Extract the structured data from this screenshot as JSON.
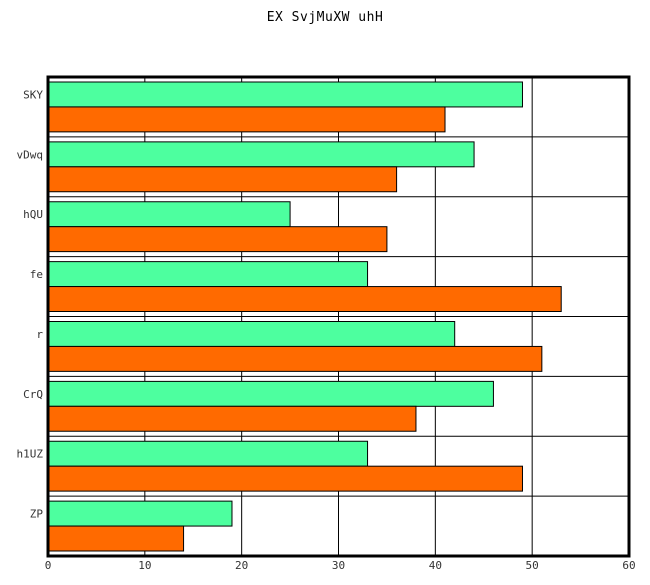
{
  "chart_data": {
    "type": "bar",
    "orientation": "horizontal",
    "title": "EX SvjMuXW uhH",
    "xlabel": "",
    "ylabel": "",
    "categories": [
      "SKY",
      "vDwq",
      "hQU",
      "fe",
      "r",
      "CrQ",
      "h1UZ",
      "ZP"
    ],
    "series": [
      {
        "color": "#4dff9f",
        "values": [
          49,
          44,
          25,
          33,
          42,
          46,
          33,
          19
        ]
      },
      {
        "color": "#ff6a00",
        "values": [
          41,
          36,
          35,
          53,
          51,
          38,
          49,
          14
        ]
      }
    ],
    "xlim": [
      0,
      60
    ],
    "xticks": [
      0,
      10,
      20,
      30,
      40,
      50,
      60
    ],
    "grid": true,
    "legend": "none"
  }
}
